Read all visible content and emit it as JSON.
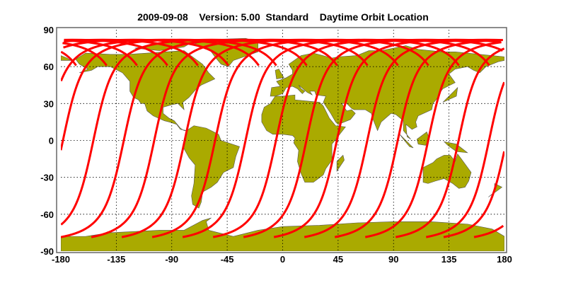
{
  "title": "2009-09-08    Version: 5.00  Standard    Daytime Orbit Location",
  "chart_data": {
    "type": "map",
    "title": "2009-09-08    Version: 5.00  Standard    Daytime Orbit Location",
    "xlim": [
      -180,
      180
    ],
    "ylim": [
      -90,
      90
    ],
    "x_ticks": [
      "-180",
      "-135",
      "-90",
      "-45",
      "0",
      "45",
      "90",
      "135",
      "180"
    ],
    "y_ticks": [
      "90",
      "60",
      "30",
      "0",
      "-30",
      "-60",
      "-90"
    ],
    "grid": true,
    "land_color": "#aaaa00",
    "track_color": "#ff0000",
    "track_equator_crossings_lon": [
      -178.3,
      -153.6,
      -128.9,
      -104.2,
      -79.5,
      -54.8,
      -30.1,
      -5.4,
      19.3,
      44.0,
      68.7,
      93.4,
      118.1,
      142.8,
      167.5
    ],
    "track_lat_range": [
      -81,
      81
    ]
  }
}
